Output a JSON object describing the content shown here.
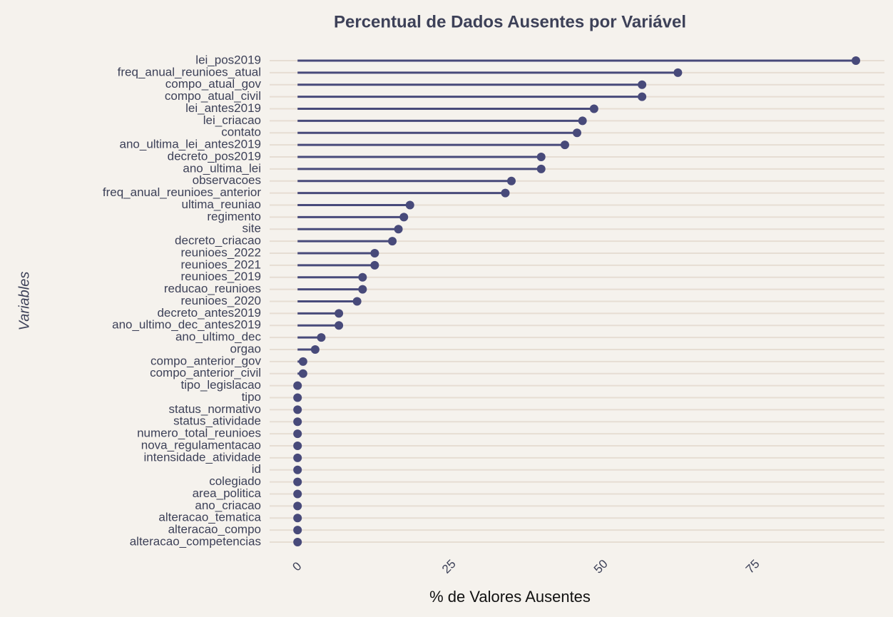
{
  "chart_data": {
    "type": "lollipop",
    "title": "Percentual de Dados Ausentes por Variável",
    "x_label": "% de Valores Ausentes",
    "y_label": "Variables",
    "color": "#484a7a",
    "categories": [
      "lei_pos2019",
      "freq_anual_reunioes_atual",
      "compo_atual_gov",
      "compo_atual_civil",
      "lei_antes2019",
      "lei_criacao",
      "contato",
      "ano_ultima_lei_antes2019",
      "decreto_pos2019",
      "ano_ultima_lei",
      "observacoes",
      "freq_anual_reunioes_anterior",
      "ultima_reuniao",
      "regimento",
      "site",
      "decreto_criacao",
      "reunioes_2022",
      "reunioes_2021",
      "reunioes_2019",
      "reducao_reunioes",
      "reunioes_2020",
      "decreto_antes2019",
      "ano_ultimo_dec_antes2019",
      "ano_ultimo_dec",
      "orgao",
      "compo_anterior_gov",
      "compo_anterior_civil",
      "tipo_legislacao",
      "tipo",
      "status_normativo",
      "status_atividade",
      "numero_total_reunioes",
      "nova_regulamentacao",
      "intensidade_atividade",
      "id",
      "colegiado",
      "area_politica",
      "ano_criacao",
      "alteracao_tematica",
      "alteracao_compo",
      "alteracao_competencias"
    ],
    "values": [
      91.9,
      62.6,
      56.7,
      56.7,
      48.8,
      46.9,
      46,
      44,
      40.1,
      40.1,
      35.2,
      34.2,
      18.5,
      17.5,
      16.6,
      15.6,
      12.7,
      12.7,
      10.7,
      10.7,
      9.8,
      6.8,
      6.8,
      3.9,
      2.9,
      0.9,
      0.9,
      0,
      0,
      0,
      0,
      0,
      0,
      0,
      0,
      0,
      0,
      0,
      0,
      0,
      0
    ],
    "xlim": [
      -4.6,
      96.6
    ],
    "xticks": [
      0,
      25,
      50,
      75
    ],
    "grid": true
  }
}
